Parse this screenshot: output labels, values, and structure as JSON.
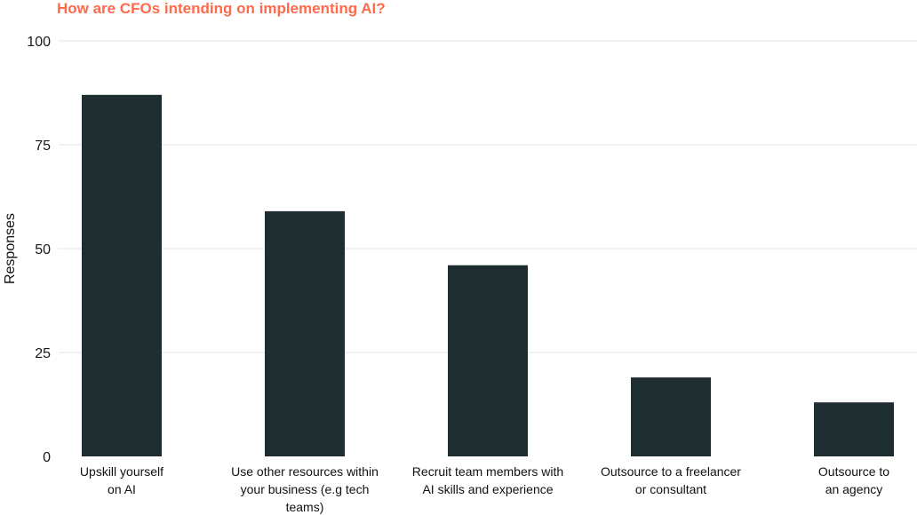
{
  "chart_data": {
    "type": "bar",
    "title": "How are CFOs intending on implementing AI?",
    "xlabel": "",
    "ylabel": "Responses",
    "ylim": [
      0,
      100
    ],
    "yticks": [
      0,
      25,
      50,
      75,
      100
    ],
    "grid": true,
    "categories": [
      [
        "Upskill yourself",
        "on AI"
      ],
      [
        "Use other resources within",
        "your business (e.g tech",
        "teams)"
      ],
      [
        "Recruit team members with",
        "AI skills and experience"
      ],
      [
        "Outsource to a freelancer",
        "or consultant"
      ],
      [
        "Outsource to",
        "an agency"
      ]
    ],
    "values": [
      87,
      59,
      46,
      19,
      13
    ],
    "colors": {
      "bar": "#1e2d30",
      "title": "#ff6a4d",
      "grid": "#e6e6e6"
    }
  }
}
